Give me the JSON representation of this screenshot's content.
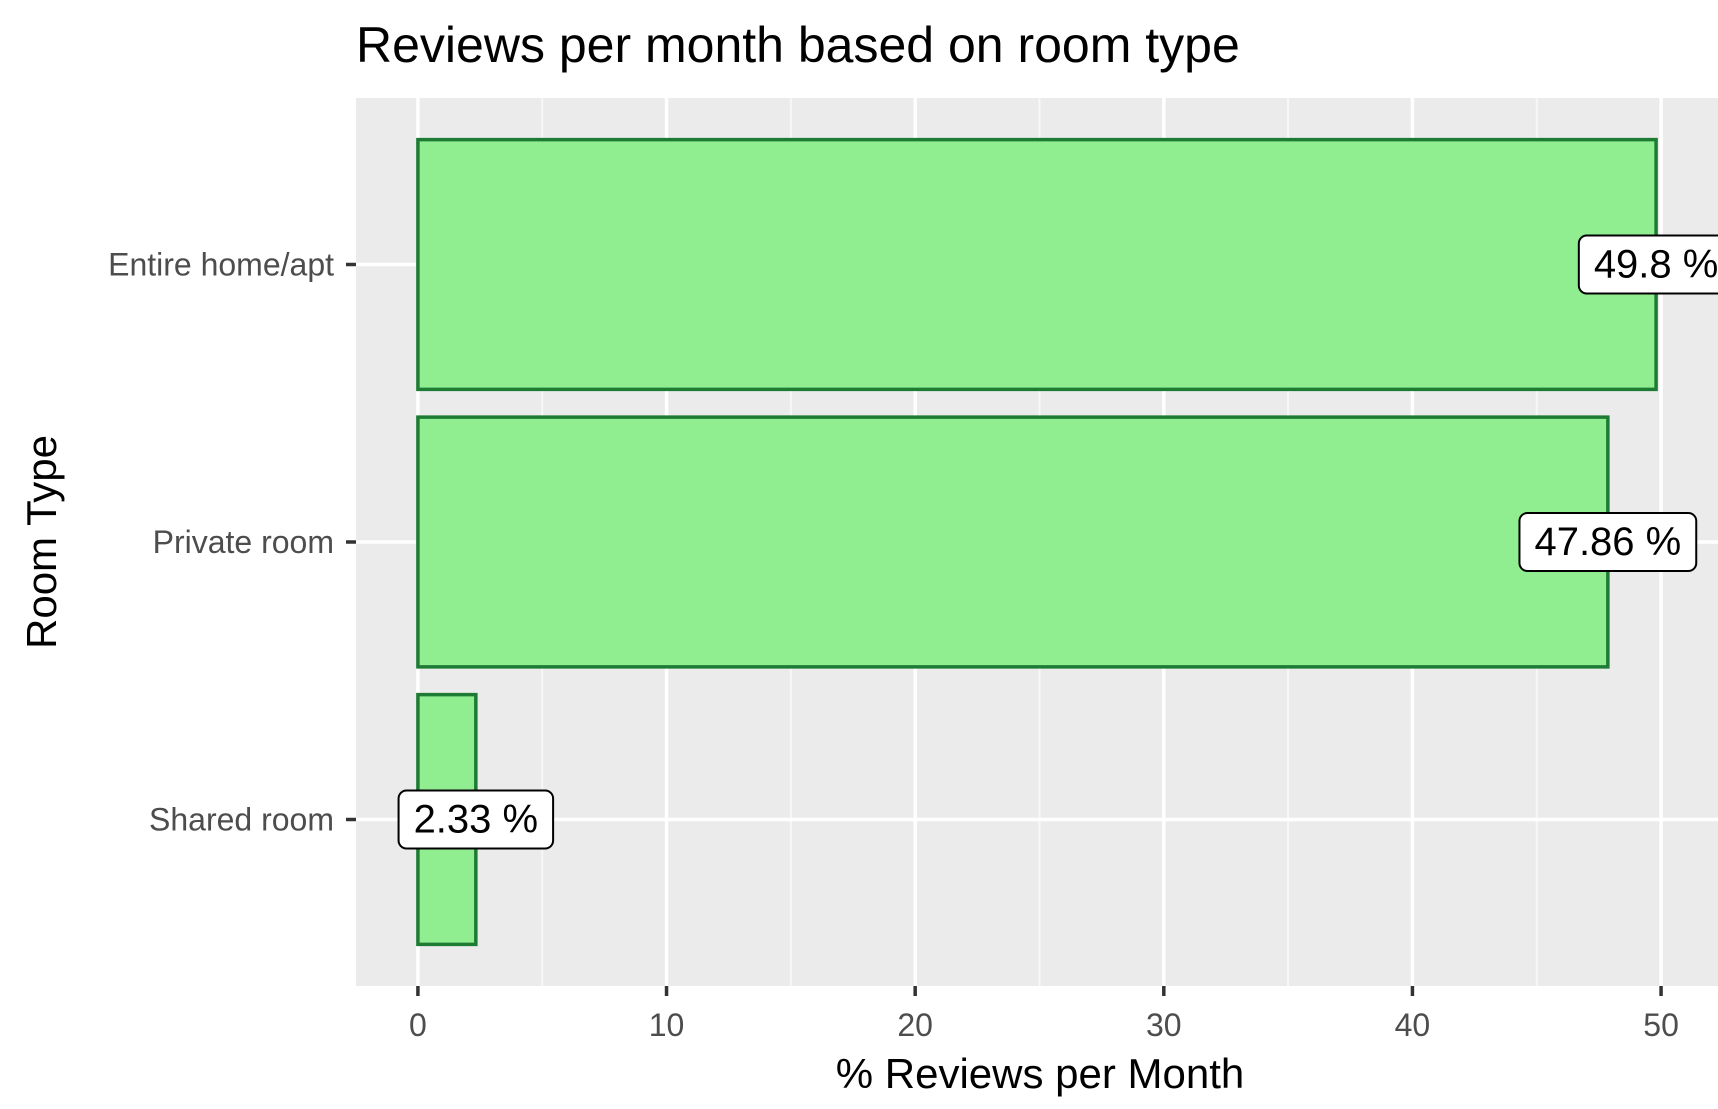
{
  "chart_data": {
    "type": "bar",
    "orientation": "horizontal",
    "title": "Reviews per month based on room type",
    "xlabel": "% Reviews per Month",
    "ylabel": "Room Type",
    "categories": [
      "Entire home/apt",
      "Private room",
      "Shared room"
    ],
    "values": [
      49.8,
      47.86,
      2.33
    ],
    "data_labels": [
      "49.8 %",
      "47.86 %",
      "2.33 %"
    ],
    "xlim": [
      -2.49,
      52.29
    ],
    "xticks": [
      0,
      10,
      20,
      30,
      40,
      50
    ],
    "xtick_labels": [
      "0",
      "10",
      "20",
      "30",
      "40",
      "50"
    ],
    "grid": true,
    "legend": "none",
    "colors": {
      "panel_background": "#ebebeb",
      "grid_major": "#ffffff",
      "grid_minor": "#f7f7f7",
      "bar_fill": "#90ee90",
      "bar_outline": "#1e7b34",
      "label_background": "#ffffff",
      "label_border": "#000000",
      "tick_mark": "#333333"
    }
  }
}
